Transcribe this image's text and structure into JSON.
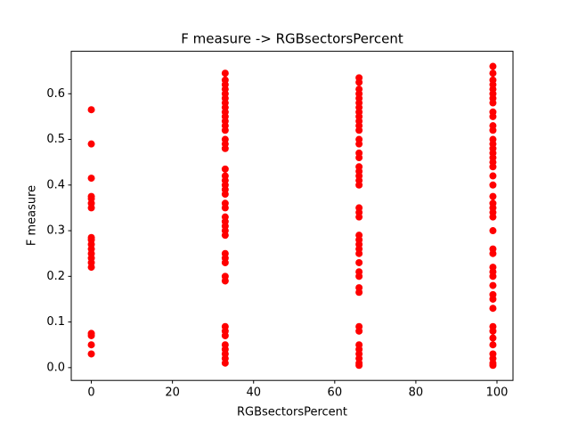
{
  "chart_data": {
    "type": "scatter",
    "title": "F measure -> RGBsectorsPercent",
    "x_label": "RGBsectorsPercent",
    "y_label": "F measure",
    "color": "#ff0000",
    "x": [
      0,
      0,
      0,
      0,
      0,
      0,
      0,
      0,
      0,
      0,
      0,
      0,
      0,
      0,
      0,
      0,
      0,
      0,
      0,
      33,
      33,
      33,
      33,
      33,
      33,
      33,
      33,
      33,
      33,
      33,
      33,
      33,
      33,
      33,
      33,
      33,
      33,
      33,
      33,
      33,
      33,
      33,
      33,
      33,
      33,
      33,
      33,
      33,
      33,
      33,
      33,
      33,
      33,
      33,
      33,
      33,
      33,
      33,
      33,
      33,
      33,
      66,
      66,
      66,
      66,
      66,
      66,
      66,
      66,
      66,
      66,
      66,
      66,
      66,
      66,
      66,
      66,
      66,
      66,
      66,
      66,
      66,
      66,
      66,
      66,
      66,
      66,
      66,
      66,
      66,
      66,
      66,
      66,
      66,
      66,
      66,
      66,
      66,
      66,
      66,
      66,
      66,
      66,
      99,
      99,
      99,
      99,
      99,
      99,
      99,
      99,
      99,
      99,
      99,
      99,
      99,
      99,
      99,
      99,
      99,
      99,
      99,
      99,
      99,
      99,
      99,
      99,
      99,
      99,
      99,
      99,
      99,
      99,
      99,
      99,
      99,
      99,
      99,
      99,
      99,
      99,
      99,
      99,
      99,
      99,
      99,
      99
    ],
    "values": [
      0.565,
      0.49,
      0.415,
      0.375,
      0.37,
      0.36,
      0.35,
      0.285,
      0.28,
      0.27,
      0.26,
      0.25,
      0.24,
      0.23,
      0.22,
      0.075,
      0.07,
      0.05,
      0.03,
      0.645,
      0.63,
      0.62,
      0.61,
      0.6,
      0.59,
      0.58,
      0.57,
      0.56,
      0.55,
      0.54,
      0.53,
      0.52,
      0.5,
      0.49,
      0.48,
      0.435,
      0.42,
      0.41,
      0.4,
      0.39,
      0.38,
      0.36,
      0.35,
      0.33,
      0.32,
      0.31,
      0.3,
      0.29,
      0.25,
      0.24,
      0.23,
      0.2,
      0.19,
      0.09,
      0.08,
      0.07,
      0.05,
      0.04,
      0.03,
      0.02,
      0.01,
      0.635,
      0.625,
      0.61,
      0.6,
      0.59,
      0.58,
      0.57,
      0.56,
      0.55,
      0.54,
      0.53,
      0.52,
      0.5,
      0.49,
      0.47,
      0.46,
      0.44,
      0.43,
      0.42,
      0.41,
      0.4,
      0.35,
      0.34,
      0.33,
      0.29,
      0.28,
      0.27,
      0.26,
      0.25,
      0.23,
      0.21,
      0.2,
      0.175,
      0.165,
      0.09,
      0.08,
      0.05,
      0.04,
      0.03,
      0.02,
      0.01,
      0.005,
      0.66,
      0.645,
      0.63,
      0.62,
      0.61,
      0.6,
      0.59,
      0.58,
      0.56,
      0.55,
      0.53,
      0.52,
      0.5,
      0.49,
      0.48,
      0.47,
      0.46,
      0.45,
      0.44,
      0.42,
      0.4,
      0.375,
      0.36,
      0.35,
      0.34,
      0.33,
      0.3,
      0.26,
      0.25,
      0.22,
      0.21,
      0.2,
      0.18,
      0.16,
      0.15,
      0.13,
      0.09,
      0.08,
      0.065,
      0.05,
      0.03,
      0.02,
      0.01,
      0.005
    ],
    "xlim": [
      -4.95,
      103.95
    ],
    "xticks": [
      0,
      20,
      40,
      60,
      80,
      100
    ],
    "ylim": [
      -0.028,
      0.693
    ],
    "yticks": [
      {
        "value": 0,
        "label": "0.0"
      },
      0.1,
      0.2,
      0.3,
      0.4,
      0.5,
      0.6
    ]
  }
}
